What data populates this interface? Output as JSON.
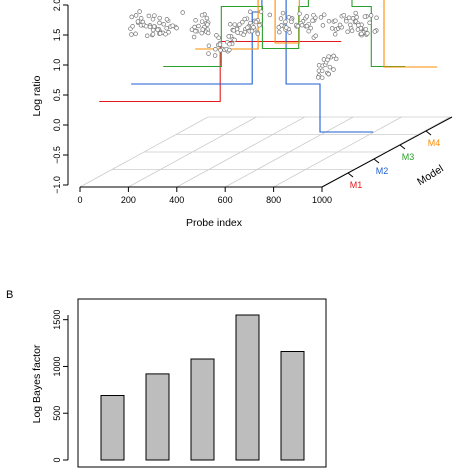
{
  "chart_data": [
    {
      "panel": "",
      "type": "scatter",
      "xlabel": "Probe index",
      "ylabel": "Log ratio",
      "zlabel": "Model",
      "x_ticks": [
        0,
        200,
        400,
        600,
        800,
        1000
      ],
      "y_ticks": [
        "−1.0",
        "−0.5",
        "0.0",
        "0.5",
        "1.0",
        "1.5",
        "2.0"
      ],
      "xlim": [
        0,
        1000
      ],
      "ylim": [
        -1.0,
        2.0
      ],
      "model_labels": [
        "M1",
        "M2",
        "M3",
        "M4"
      ],
      "model_colors": [
        "#e41a1c",
        "#1f5fd6",
        "#2ca02c",
        "#ff8c00"
      ],
      "point_color": "#777777",
      "segments": [
        {
          "x": [
            0,
            500,
            500,
            1000
          ],
          "y": [
            0.0,
            0.0,
            1.0,
            1.0
          ]
        },
        {
          "x": [
            0,
            500,
            500,
            540,
            540,
            640,
            640,
            780,
            780,
            1000
          ],
          "y": [
            0.0,
            0.0,
            1.2,
            1.2,
            1.5,
            1.5,
            0.0,
            0.0,
            -0.8,
            -0.8
          ]
        },
        {
          "x": [
            0,
            240,
            240,
            410,
            410,
            560,
            560,
            600,
            600,
            780,
            780,
            860,
            860,
            1000
          ],
          "y": [
            0.0,
            0.0,
            1.0,
            1.0,
            0.3,
            0.3,
            1.0,
            1.0,
            1.5,
            1.5,
            1.0,
            1.0,
            0.0,
            0.0
          ]
        },
        {
          "x": [
            0,
            260,
            260,
            330,
            330,
            430,
            430,
            780,
            780,
            1000
          ],
          "y": [
            0.0,
            0.0,
            1.8,
            1.8,
            0.1,
            0.1,
            2.5,
            2.5,
            -0.3,
            -0.3
          ]
        }
      ],
      "points": [
        {
          "x_range": [
            0,
            200
          ],
          "y": 1.0,
          "n": 45
        },
        {
          "x_range": [
            200,
            260
          ],
          "y": 1.7,
          "n": 15
        },
        {
          "x_range": [
            260,
            330
          ],
          "y": 1.0,
          "n": 20
        },
        {
          "x_range": [
            330,
            430
          ],
          "y": 0.65,
          "n": 22
        },
        {
          "x_range": [
            430,
            560
          ],
          "y": 1.0,
          "n": 35
        },
        {
          "x_range": [
            620,
            780
          ],
          "y": 1.0,
          "n": 40
        },
        {
          "x_range": [
            780,
            840
          ],
          "y": 0.3,
          "n": 20
        },
        {
          "x_range": [
            840,
            1000
          ],
          "y": 1.0,
          "n": 45
        }
      ]
    },
    {
      "panel": "B",
      "type": "bar",
      "ylabel": "Log Bayes factor",
      "categories": [
        "",
        "",
        "",
        "",
        ""
      ],
      "values": [
        690,
        920,
        1080,
        1550,
        1160
      ],
      "ylim": [
        0,
        1700
      ],
      "y_ticks": [
        0,
        500,
        1000,
        1500
      ],
      "bar_color": "#bdbdbd"
    }
  ]
}
